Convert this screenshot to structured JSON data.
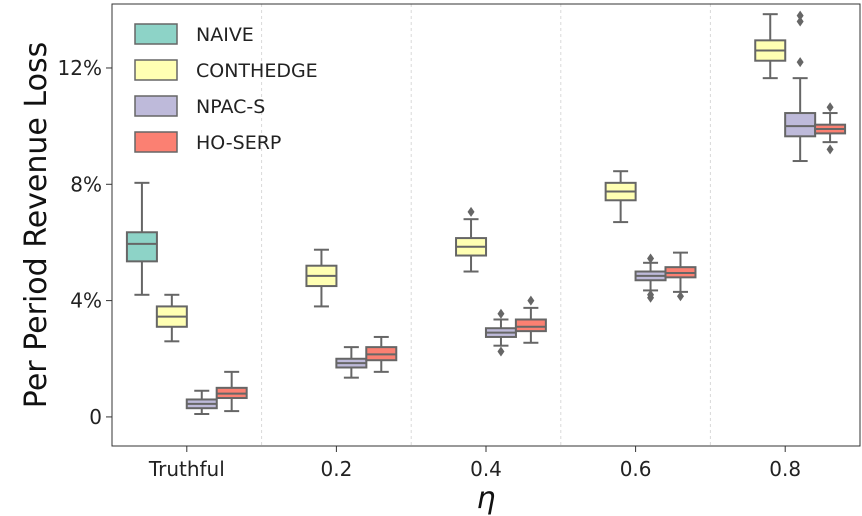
{
  "chart_data": {
    "type": "box",
    "title": "",
    "xlabel": "η",
    "ylabel": "Per Period Revenue Loss",
    "ylim": [
      -1.0,
      14.2
    ],
    "yticks": [
      {
        "value": 0,
        "label": "0"
      },
      {
        "value": 4,
        "label": "4%"
      },
      {
        "value": 8,
        "label": "8%"
      },
      {
        "value": 12,
        "label": "12%"
      }
    ],
    "categories": [
      "Truthful",
      "0.2",
      "0.4",
      "0.6",
      "0.8"
    ],
    "grid": "vertical dotted separators between categories",
    "legend_position": "top-left",
    "series": [
      {
        "name": "NAIVE",
        "color": "#8dd3c7",
        "boxes": [
          {
            "category": "Truthful",
            "whislo": 4.2,
            "q1": 5.35,
            "med": 5.95,
            "q3": 6.35,
            "whishi": 8.05,
            "fliers": []
          }
        ]
      },
      {
        "name": "CONTHEDGE",
        "color": "#ffffb3",
        "boxes": [
          {
            "category": "Truthful",
            "whislo": 2.6,
            "q1": 3.1,
            "med": 3.45,
            "q3": 3.8,
            "whishi": 4.2,
            "fliers": []
          },
          {
            "category": "0.2",
            "whislo": 3.8,
            "q1": 4.5,
            "med": 4.85,
            "q3": 5.2,
            "whishi": 5.75,
            "fliers": []
          },
          {
            "category": "0.4",
            "whislo": 5.0,
            "q1": 5.55,
            "med": 5.85,
            "q3": 6.15,
            "whishi": 6.8,
            "fliers": [
              7.05
            ]
          },
          {
            "category": "0.6",
            "whislo": 6.7,
            "q1": 7.45,
            "med": 7.75,
            "q3": 8.05,
            "whishi": 8.45,
            "fliers": []
          },
          {
            "category": "0.8",
            "whislo": 11.65,
            "q1": 12.25,
            "med": 12.6,
            "q3": 12.95,
            "whishi": 13.85,
            "fliers": []
          }
        ]
      },
      {
        "name": "NPAC-S",
        "color": "#bebada",
        "boxes": [
          {
            "category": "Truthful",
            "whislo": 0.1,
            "q1": 0.3,
            "med": 0.45,
            "q3": 0.6,
            "whishi": 0.9,
            "fliers": []
          },
          {
            "category": "0.2",
            "whislo": 1.35,
            "q1": 1.7,
            "med": 1.85,
            "q3": 2.0,
            "whishi": 2.4,
            "fliers": []
          },
          {
            "category": "0.4",
            "whislo": 2.45,
            "q1": 2.75,
            "med": 2.9,
            "q3": 3.05,
            "whishi": 3.35,
            "fliers": [
              2.25,
              3.55
            ]
          },
          {
            "category": "0.6",
            "whislo": 4.35,
            "q1": 4.7,
            "med": 4.85,
            "q3": 5.0,
            "whishi": 5.3,
            "fliers": [
              4.1,
              4.2,
              5.45
            ]
          },
          {
            "category": "0.8",
            "whislo": 8.8,
            "q1": 9.65,
            "med": 10.0,
            "q3": 10.45,
            "whishi": 11.65,
            "fliers": [
              12.2,
              13.6,
              13.8
            ]
          }
        ]
      },
      {
        "name": "HO-SERP",
        "color": "#fb8072",
        "boxes": [
          {
            "category": "Truthful",
            "whislo": 0.2,
            "q1": 0.65,
            "med": 0.8,
            "q3": 1.0,
            "whishi": 1.55,
            "fliers": []
          },
          {
            "category": "0.2",
            "whislo": 1.55,
            "q1": 1.95,
            "med": 2.15,
            "q3": 2.4,
            "whishi": 2.75,
            "fliers": []
          },
          {
            "category": "0.4",
            "whislo": 2.55,
            "q1": 2.95,
            "med": 3.1,
            "q3": 3.35,
            "whishi": 3.75,
            "fliers": [
              4.0
            ]
          },
          {
            "category": "0.6",
            "whislo": 4.3,
            "q1": 4.8,
            "med": 4.95,
            "q3": 5.15,
            "whishi": 5.65,
            "fliers": [
              4.15
            ]
          },
          {
            "category": "0.8",
            "whislo": 9.45,
            "q1": 9.75,
            "med": 9.9,
            "q3": 10.05,
            "whishi": 10.45,
            "fliers": [
              9.2,
              10.65
            ]
          }
        ]
      }
    ]
  }
}
